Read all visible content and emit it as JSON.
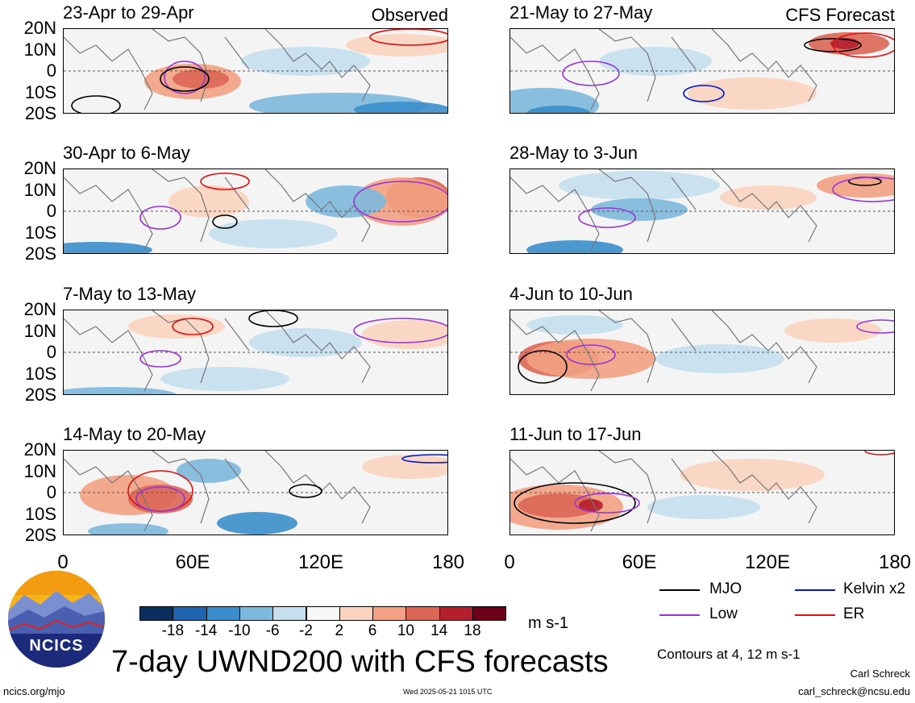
{
  "panels": [
    {
      "title": "23-Apr to 29-Apr",
      "label": "Observed"
    },
    {
      "title": "21-May to 27-May",
      "label": "CFS Forecast"
    },
    {
      "title": "30-Apr to 6-May",
      "label": ""
    },
    {
      "title": "28-May to 3-Jun",
      "label": ""
    },
    {
      "title": "7-May to 13-May",
      "label": ""
    },
    {
      "title": "4-Jun to 10-Jun",
      "label": ""
    },
    {
      "title": "14-May to 20-May",
      "label": ""
    },
    {
      "title": "11-Jun to 17-Jun",
      "label": ""
    }
  ],
  "lat_labels": [
    "20N",
    "10N",
    "0",
    "10S",
    "20S"
  ],
  "lon_labels": [
    "0",
    "60E",
    "120E",
    "180"
  ],
  "colorbar": {
    "ticks": [
      "-18",
      "-14",
      "-10",
      "-6",
      "-2",
      "2",
      "6",
      "10",
      "14",
      "18"
    ],
    "colors": [
      "#0b2f5c",
      "#1f64ad",
      "#3a8ecb",
      "#7db8dd",
      "#c5dfee",
      "#f7f7f7",
      "#fbd4c0",
      "#f2a182",
      "#dc6655",
      "#b41f2d",
      "#6b0018"
    ],
    "units": "m s-1"
  },
  "legend": [
    {
      "label": "MJO",
      "color": "#000000"
    },
    {
      "label": "Kelvin x2",
      "color": "#0018d0"
    },
    {
      "label": "Low",
      "color": "#9a34d8"
    },
    {
      "label": "ER",
      "color": "#e01010"
    }
  ],
  "title": "7-day UWND200 with CFS forecasts",
  "contours_note": "Contours at 4, 12 m s-1",
  "author": "Carl Schreck",
  "email": "carl_schreck@ncsu.edu",
  "url": "ncics.org/mjo",
  "timestamp": "Wed 2025-05-21 1015 UTC",
  "logo_text": "NCICS"
}
